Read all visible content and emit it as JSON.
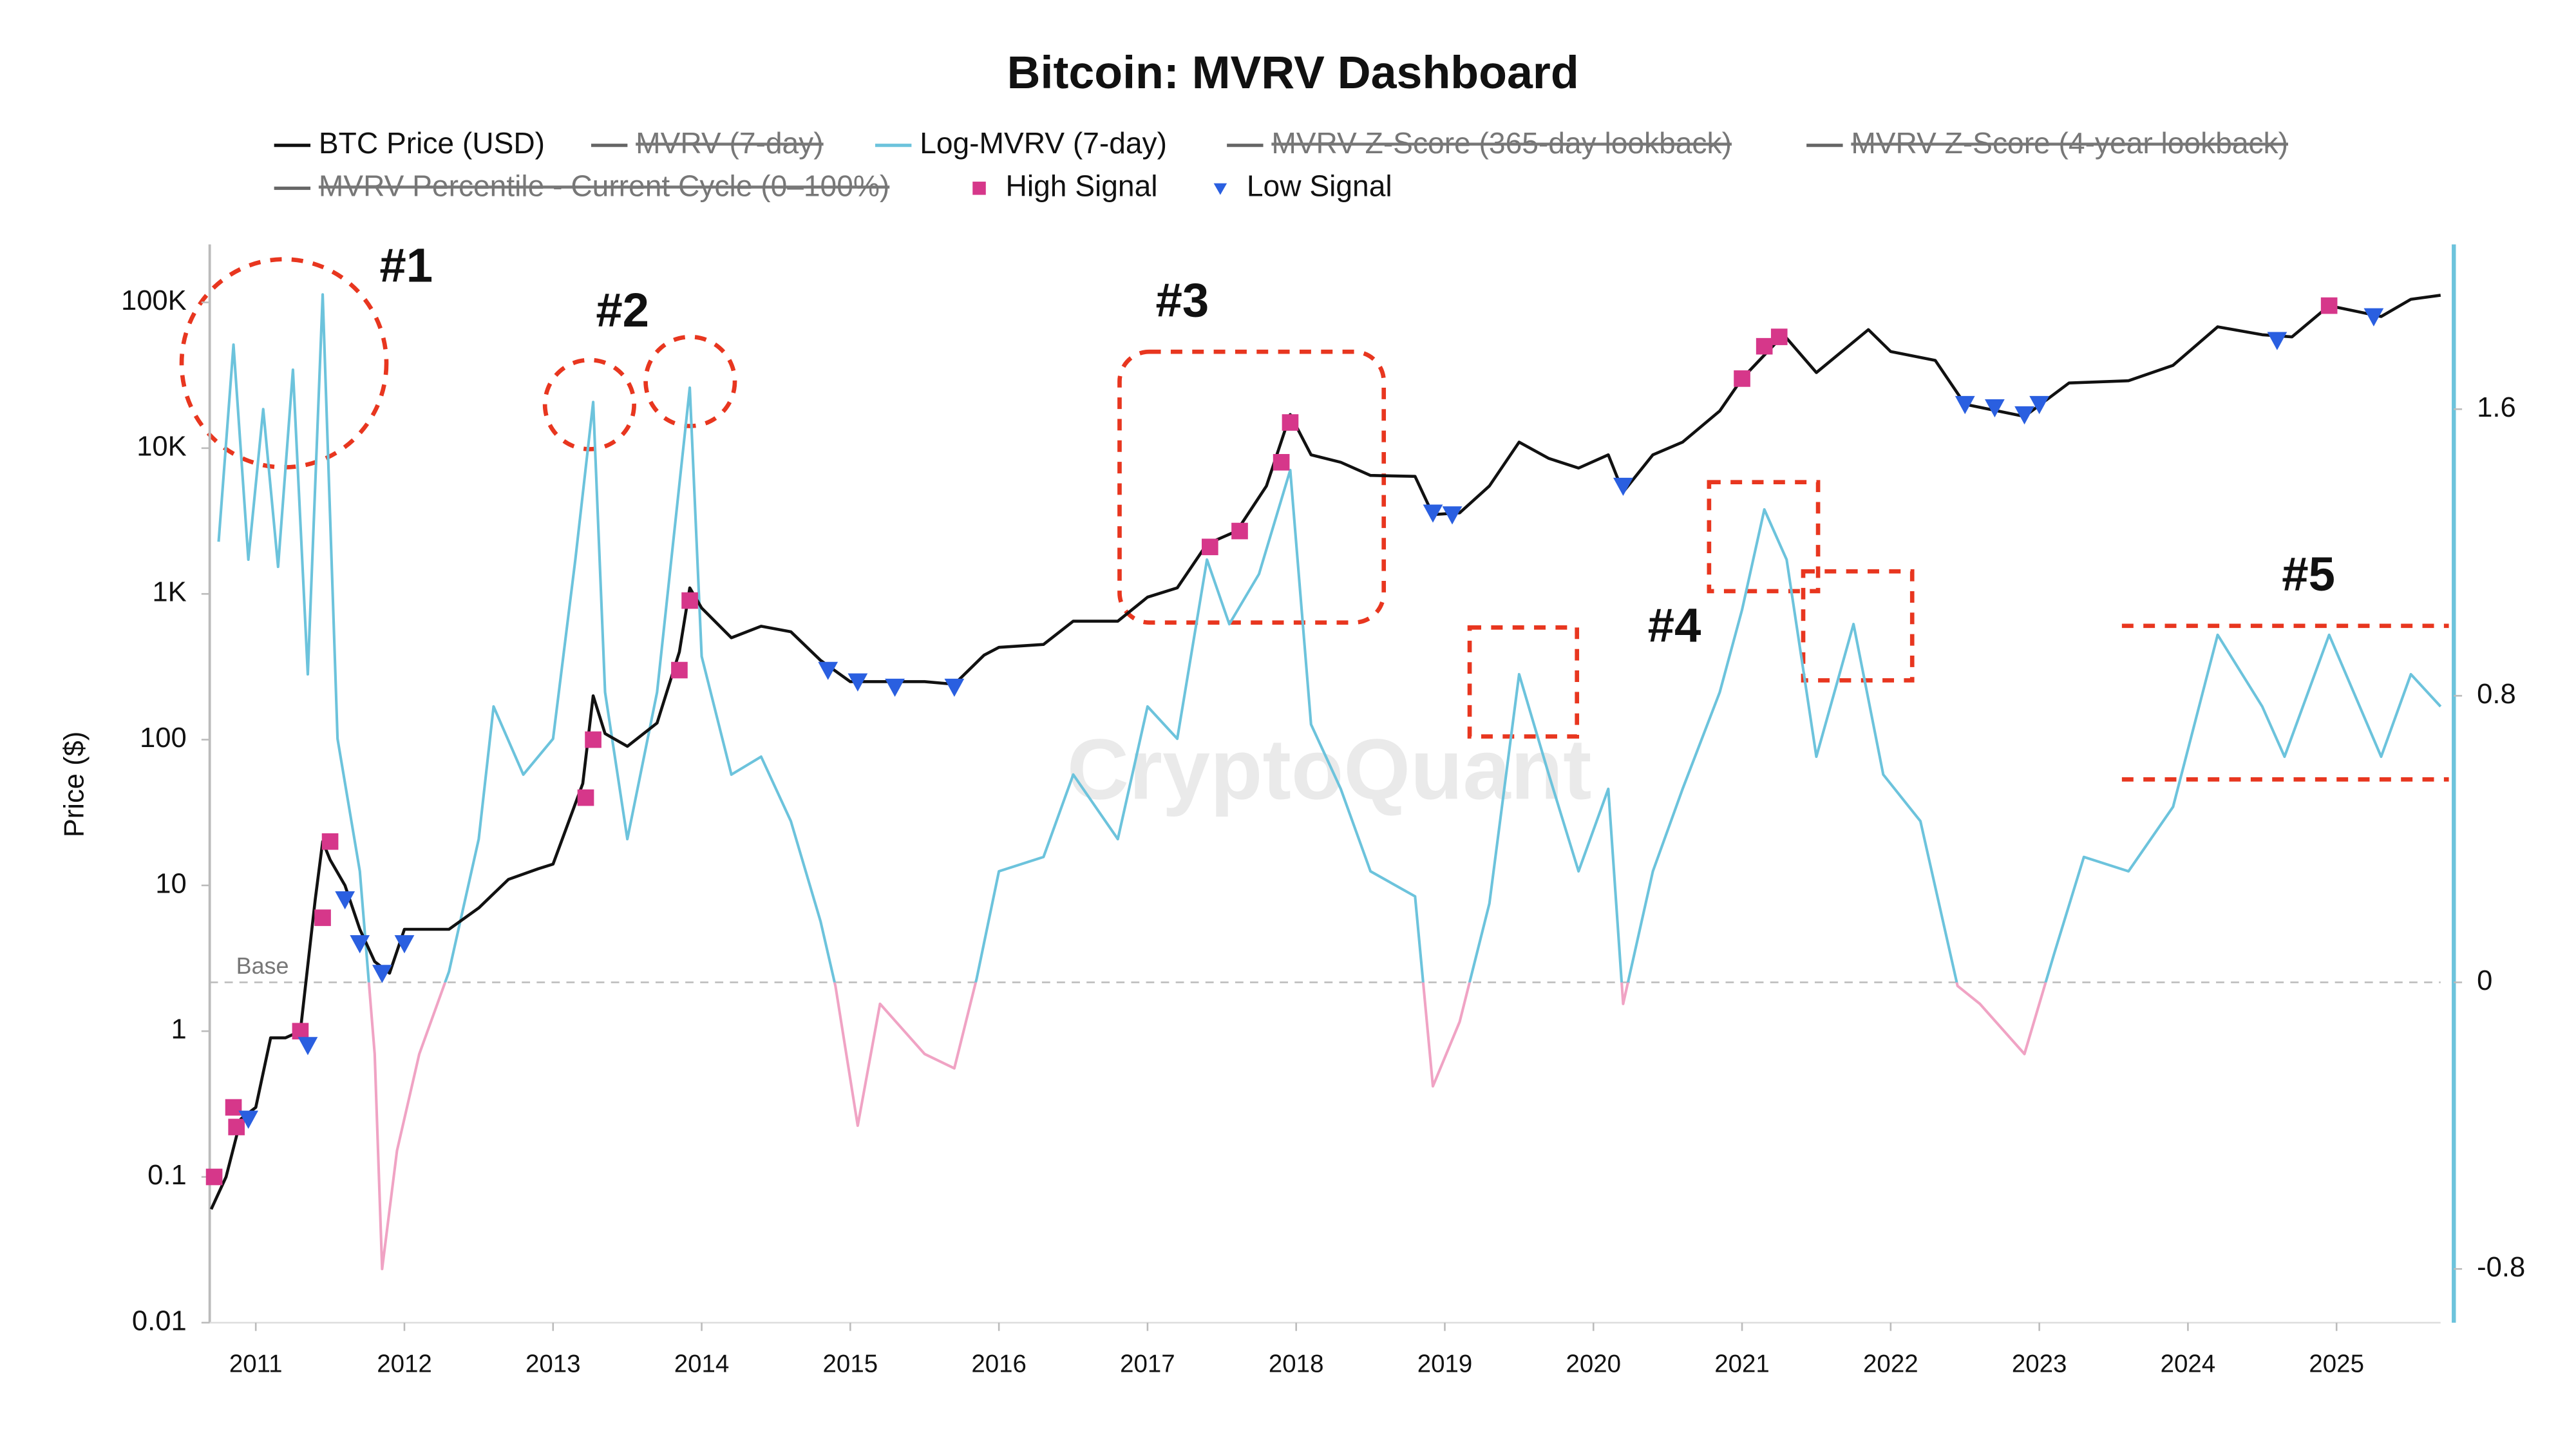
{
  "chart_data": {
    "type": "line",
    "title": "Bitcoin: MVRV Dashboard",
    "watermark": "CryptoQuant",
    "ylabel": "Price ($)",
    "yscale": "log",
    "xlim": [
      2010.69,
      2025.7
    ],
    "xticks": [
      2011,
      2012,
      2013,
      2014,
      2015,
      2016,
      2017,
      2018,
      2019,
      2020,
      2021,
      2022,
      2023,
      2024,
      2025
    ],
    "ylim": [
      0.01,
      250000
    ],
    "yticks": [
      0.01,
      0.1,
      1,
      10,
      100,
      {
        "value": 1000,
        "label": "1K"
      },
      {
        "value": 10000,
        "label": "10K"
      },
      {
        "value": 100000,
        "label": "100K"
      }
    ],
    "y2lim": [
      -0.95,
      2.06
    ],
    "y2ticks": [
      -0.8,
      0,
      0.8,
      1.6
    ],
    "base_line": {
      "value": 0,
      "label": "Base"
    },
    "annotations": [
      "#1",
      "#2",
      "#3",
      "#4",
      "#5"
    ],
    "series": [
      {
        "name": "BTC Price (USD)",
        "color": "#111111",
        "kind": "line",
        "x": [
          2010.7,
          2010.8,
          2010.9,
          2011.0,
          2011.1,
          2011.2,
          2011.3,
          2011.4,
          2011.45,
          2011.5,
          2011.6,
          2011.7,
          2011.8,
          2011.9,
          2012.0,
          2012.1,
          2012.3,
          2012.5,
          2012.7,
          2012.9,
          2013.0,
          2013.2,
          2013.27,
          2013.35,
          2013.5,
          2013.7,
          2013.85,
          2013.92,
          2014.0,
          2014.2,
          2014.4,
          2014.6,
          2014.8,
          2015.0,
          2015.2,
          2015.5,
          2015.7,
          2015.9,
          2016.0,
          2016.3,
          2016.5,
          2016.8,
          2017.0,
          2017.2,
          2017.4,
          2017.6,
          2017.8,
          2017.96,
          2018.1,
          2018.3,
          2018.5,
          2018.8,
          2018.92,
          2019.1,
          2019.3,
          2019.5,
          2019.7,
          2019.9,
          2020.1,
          2020.2,
          2020.4,
          2020.6,
          2020.85,
          2021.0,
          2021.28,
          2021.5,
          2021.85,
          2022.0,
          2022.3,
          2022.5,
          2022.9,
          2023.2,
          2023.6,
          2023.9,
          2024.2,
          2024.5,
          2024.7,
          2024.95,
          2025.3,
          2025.5,
          2025.7
        ],
        "values": [
          0.06,
          0.1,
          0.25,
          0.3,
          0.9,
          0.9,
          1.0,
          8,
          20,
          15,
          10,
          5,
          3,
          2.5,
          5,
          5,
          5,
          7,
          11,
          13,
          14,
          50,
          200,
          110,
          90,
          130,
          400,
          1100,
          800,
          500,
          600,
          550,
          350,
          250,
          250,
          250,
          240,
          380,
          430,
          450,
          650,
          650,
          950,
          1100,
          2200,
          2700,
          5500,
          17000,
          9000,
          8000,
          6500,
          6400,
          3500,
          3600,
          5500,
          11000,
          8500,
          7300,
          9000,
          5000,
          9000,
          11000,
          18000,
          30000,
          60000,
          33000,
          65000,
          46000,
          40000,
          20000,
          16500,
          28000,
          29000,
          37000,
          68000,
          60000,
          58000,
          95000,
          80000,
          105000,
          112000
        ]
      },
      {
        "name": "MVRV (7-day)",
        "color": "#666666",
        "kind": "line",
        "visible": false
      },
      {
        "name": "Log-MVRV (7-day)",
        "color": "#6cc3dc",
        "negative_color": "#f0a3c4",
        "kind": "line",
        "axis": "y2",
        "x": [
          2010.75,
          2010.85,
          2010.95,
          2011.05,
          2011.15,
          2011.25,
          2011.35,
          2011.45,
          2011.55,
          2011.7,
          2011.8,
          2011.85,
          2011.95,
          2012.1,
          2012.3,
          2012.5,
          2012.6,
          2012.8,
          2013.0,
          2013.15,
          2013.27,
          2013.35,
          2013.5,
          2013.7,
          2013.92,
          2014.0,
          2014.2,
          2014.4,
          2014.6,
          2014.8,
          2014.9,
          2015.05,
          2015.2,
          2015.5,
          2015.7,
          2015.85,
          2016.0,
          2016.3,
          2016.5,
          2016.8,
          2017.0,
          2017.2,
          2017.4,
          2017.55,
          2017.75,
          2017.96,
          2018.1,
          2018.3,
          2018.5,
          2018.8,
          2018.92,
          2019.1,
          2019.3,
          2019.5,
          2019.7,
          2019.9,
          2020.1,
          2020.2,
          2020.4,
          2020.6,
          2020.85,
          2021.0,
          2021.15,
          2021.3,
          2021.5,
          2021.75,
          2021.95,
          2022.2,
          2022.45,
          2022.6,
          2022.9,
          2023.1,
          2023.3,
          2023.6,
          2023.9,
          2024.2,
          2024.5,
          2024.65,
          2024.95,
          2025.3,
          2025.5,
          2025.7
        ],
        "values": [
          1.23,
          1.78,
          1.18,
          1.6,
          1.16,
          1.71,
          0.86,
          1.92,
          0.68,
          0.31,
          -0.2,
          -0.8,
          -0.47,
          -0.2,
          0.03,
          0.4,
          0.77,
          0.58,
          0.68,
          1.18,
          1.62,
          0.81,
          0.4,
          0.81,
          1.66,
          0.91,
          0.58,
          0.63,
          0.45,
          0.17,
          -0.01,
          -0.4,
          -0.06,
          -0.2,
          -0.24,
          0.01,
          0.31,
          0.35,
          0.58,
          0.4,
          0.77,
          0.68,
          1.18,
          1.0,
          1.14,
          1.43,
          0.72,
          0.54,
          0.31,
          0.24,
          -0.29,
          -0.11,
          0.22,
          0.86,
          0.58,
          0.31,
          0.54,
          -0.06,
          0.31,
          0.54,
          0.81,
          1.04,
          1.32,
          1.18,
          0.63,
          1.0,
          0.58,
          0.45,
          -0.01,
          -0.06,
          -0.2,
          0.08,
          0.35,
          0.31,
          0.49,
          0.97,
          0.77,
          0.63,
          0.97,
          0.63,
          0.86,
          0.77
        ]
      },
      {
        "name": "MVRV Z-Score (365-day lookback)",
        "color": "#666666",
        "kind": "line",
        "visible": false
      },
      {
        "name": "MVRV Z-Score (4-year lookback)",
        "color": "#666666",
        "kind": "line",
        "visible": false
      },
      {
        "name": "MVRV Percentile - Current Cycle (0–100%)",
        "color": "#666666",
        "kind": "line",
        "visible": false
      },
      {
        "name": "High Signal",
        "color": "#d6378a",
        "kind": "scatter",
        "marker": "square",
        "x": [
          2010.72,
          2010.85,
          2010.87,
          2011.3,
          2011.45,
          2011.5,
          2013.22,
          2013.27,
          2013.85,
          2013.92,
          2017.42,
          2017.62,
          2017.9,
          2017.96,
          2021.0,
          2021.15,
          2021.25,
          2024.95
        ],
        "values": [
          0.1,
          0.3,
          0.22,
          1.0,
          6,
          20,
          40,
          100,
          300,
          900,
          2100,
          2700,
          8000,
          15000,
          30000,
          50000,
          58000,
          95000
        ]
      },
      {
        "name": "Low Signal",
        "color": "#2a5fe0",
        "kind": "scatter",
        "marker": "triangle",
        "x": [
          2010.95,
          2011.35,
          2011.6,
          2011.7,
          2011.85,
          2012.0,
          2014.85,
          2015.05,
          2015.3,
          2015.7,
          2018.92,
          2019.05,
          2020.2,
          2022.5,
          2022.7,
          2022.9,
          2023.0,
          2024.6,
          2025.25
        ],
        "values": [
          0.25,
          0.8,
          8,
          4,
          2.5,
          4,
          300,
          250,
          230,
          230,
          3600,
          3500,
          5500,
          20000,
          19000,
          17000,
          20000,
          55000,
          80000
        ]
      }
    ]
  }
}
